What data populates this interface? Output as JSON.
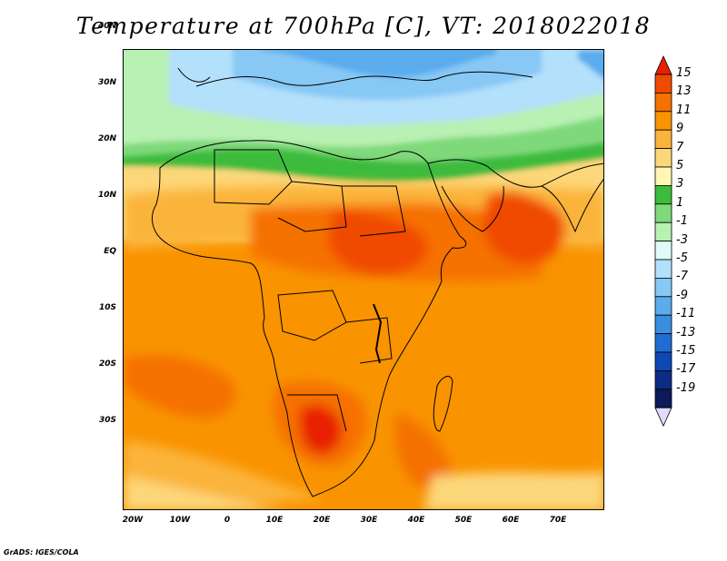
{
  "title": "Temperature at 700hPa [C], VT: 2018022018",
  "map": {
    "region": "Africa and Middle East",
    "lat_labels": [
      "40N",
      "30N",
      "20N",
      "10N",
      "EQ",
      "10S",
      "20S",
      "30S"
    ],
    "lon_labels": [
      "20W",
      "10W",
      "0",
      "10E",
      "20E",
      "30E",
      "40E",
      "50E",
      "60E",
      "70E"
    ]
  },
  "colorbar": {
    "labels": [
      "15",
      "13",
      "11",
      "9",
      "7",
      "5",
      "3",
      "1",
      "-1",
      "-3",
      "-5",
      "-7",
      "-9",
      "-11",
      "-13",
      "-15",
      "-17",
      "-19"
    ],
    "colors": [
      "#e82000",
      "#f04a00",
      "#f57100",
      "#f99300",
      "#fbb43b",
      "#fcd77a",
      "#fff7b3",
      "#3cbb3c",
      "#7fd97a",
      "#b9f0b3",
      "#e0fbf7",
      "#b3e0fb",
      "#87c8f5",
      "#5aacec",
      "#3a8ee0",
      "#1f6dd3",
      "#0f47b3",
      "#0c2b85",
      "#0a1a5a",
      "#e0dcff"
    ]
  },
  "footer": "GrADS: IGES/COLA"
}
